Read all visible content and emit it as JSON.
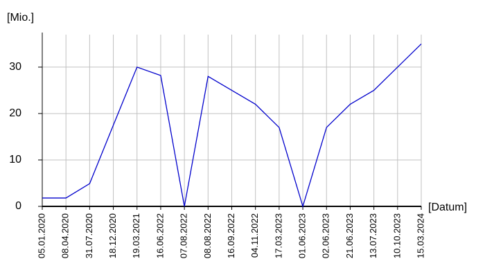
{
  "chart_data": {
    "type": "line",
    "y_label": "[Mio.]",
    "x_label": "[Datum]",
    "categories": [
      "05.01.2020",
      "08.04.2020",
      "31.07.2020",
      "18.12.2020",
      "19.03.2021",
      "16.06.2022",
      "07.08.2022",
      "08.08.2022",
      "16.09.2022",
      "04.11.2022",
      "17.03.2023",
      "01.06.2023",
      "02.06.2023",
      "21.06.2023",
      "13.07.2023",
      "10.10.2023",
      "15.03.2024"
    ],
    "series": [
      {
        "color": "#0000cc",
        "values": [
          1.8,
          1.8,
          4.9,
          17.5,
          30,
          28.2,
          0,
          28,
          25,
          22,
          17,
          0,
          17,
          22,
          25,
          30,
          35
        ]
      }
    ],
    "ylim": [
      0,
      37
    ],
    "yticks": [
      0,
      10,
      20,
      30
    ],
    "grid": true
  }
}
